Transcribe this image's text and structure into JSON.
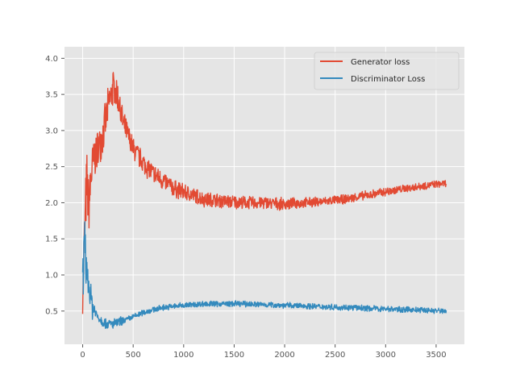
{
  "chart_data": {
    "type": "line",
    "title": "",
    "xlabel": "",
    "ylabel": "",
    "xlim": [
      -180,
      3780
    ],
    "ylim": [
      0.04,
      4.16
    ],
    "xticks": [
      0,
      500,
      1000,
      1500,
      2000,
      2500,
      3000,
      3500
    ],
    "yticks": [
      0.5,
      1.0,
      1.5,
      2.0,
      2.5,
      3.0,
      3.5,
      4.0
    ],
    "ytick_labels": [
      "0.5",
      "1.0",
      "1.5",
      "2.0",
      "2.5",
      "3.0",
      "3.5",
      "4.0"
    ],
    "grid": true,
    "legend_position": "upper-right",
    "series": [
      {
        "name": "Generator loss",
        "color": "#E24A33",
        "x": [
          0,
          20,
          40,
          60,
          80,
          100,
          150,
          200,
          250,
          300,
          350,
          400,
          500,
          600,
          700,
          800,
          900,
          1000,
          1100,
          1200,
          1400,
          1600,
          1800,
          2000,
          2200,
          2400,
          2600,
          2800,
          3000,
          3200,
          3400,
          3600
        ],
        "y": [
          0.75,
          1.6,
          2.3,
          1.9,
          2.3,
          2.55,
          2.75,
          2.95,
          3.3,
          3.6,
          3.45,
          3.1,
          2.75,
          2.55,
          2.4,
          2.3,
          2.2,
          2.15,
          2.1,
          2.05,
          2.02,
          2.0,
          2.0,
          1.98,
          2.0,
          2.02,
          2.05,
          2.1,
          2.15,
          2.2,
          2.24,
          2.27
        ],
        "noise": [
          0.3,
          0.5,
          0.5,
          0.5,
          0.45,
          0.35,
          0.3,
          0.3,
          0.3,
          0.3,
          0.25,
          0.2,
          0.18,
          0.17,
          0.16,
          0.15,
          0.14,
          0.13,
          0.12,
          0.12,
          0.11,
          0.1,
          0.1,
          0.09,
          0.08,
          0.07,
          0.07,
          0.07,
          0.07,
          0.06,
          0.06,
          0.05
        ]
      },
      {
        "name": "Discriminator Loss",
        "color": "#348ABD",
        "x": [
          0,
          20,
          40,
          60,
          80,
          100,
          150,
          200,
          250,
          300,
          400,
          500,
          600,
          700,
          800,
          1000,
          1200,
          1400,
          1600,
          1800,
          2000,
          2200,
          2400,
          2600,
          2800,
          3000,
          3200,
          3400,
          3600
        ],
        "y": [
          0.9,
          1.3,
          1.1,
          0.85,
          0.7,
          0.55,
          0.42,
          0.35,
          0.32,
          0.32,
          0.36,
          0.42,
          0.48,
          0.52,
          0.55,
          0.58,
          0.6,
          0.6,
          0.6,
          0.59,
          0.58,
          0.57,
          0.56,
          0.55,
          0.54,
          0.53,
          0.52,
          0.51,
          0.5
        ]
      }
    ]
  }
}
